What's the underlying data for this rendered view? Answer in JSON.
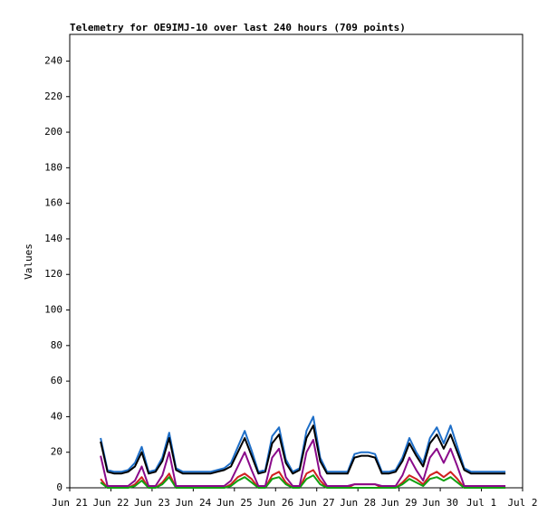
{
  "chart_data": {
    "type": "line",
    "title": "Telemetry for OE9IMJ-10 over last 240 hours (709 points)",
    "y_label": "Values",
    "x": [
      18,
      22,
      26,
      30,
      34,
      38,
      42,
      46,
      50,
      54,
      58,
      62,
      66,
      70,
      74,
      78,
      82,
      86,
      90,
      94,
      98,
      102,
      106,
      110,
      114,
      118,
      122,
      126,
      130,
      134,
      138,
      142,
      146,
      150,
      154,
      158,
      162,
      166,
      170,
      174,
      178,
      182,
      186,
      190,
      194,
      198,
      202,
      206,
      210,
      214,
      218,
      222,
      226,
      230,
      234,
      238,
      242,
      246,
      250,
      254
    ],
    "series": [
      {
        "color": "#1f6fc8",
        "values": [
          28,
          10,
          9,
          9,
          10,
          14,
          23,
          9,
          10,
          17,
          31,
          11,
          9,
          9,
          9,
          9,
          9,
          10,
          11,
          14,
          23,
          32,
          21,
          9,
          10,
          29,
          34,
          16,
          9,
          11,
          32,
          40,
          17,
          9,
          9,
          9,
          9,
          19,
          20,
          20,
          19,
          9,
          9,
          10,
          17,
          28,
          20,
          14,
          28,
          34,
          25,
          35,
          23,
          11,
          9,
          9,
          9,
          9,
          9,
          9
        ]
      },
      {
        "color": "#d02020",
        "values": [
          5,
          0,
          0,
          0,
          0,
          2,
          6,
          0,
          0,
          3,
          8,
          0,
          0,
          0,
          0,
          0,
          0,
          0,
          0,
          2,
          6,
          8,
          5,
          0,
          0,
          7,
          9,
          3,
          0,
          0,
          8,
          10,
          4,
          0,
          0,
          0,
          0,
          2,
          2,
          2,
          2,
          0,
          0,
          0,
          3,
          7,
          5,
          2,
          7,
          9,
          6,
          9,
          5,
          0,
          0,
          0,
          0,
          0,
          0,
          0
        ]
      },
      {
        "color": "#10a010",
        "values": [
          3,
          0,
          0,
          0,
          0,
          1,
          4,
          0,
          0,
          2,
          6,
          0,
          0,
          0,
          0,
          0,
          0,
          0,
          0,
          1,
          4,
          6,
          3,
          0,
          0,
          5,
          6,
          2,
          0,
          0,
          5,
          7,
          2,
          0,
          0,
          0,
          0,
          0,
          0,
          0,
          0,
          0,
          0,
          0,
          2,
          5,
          3,
          1,
          5,
          6,
          4,
          6,
          3,
          0,
          0,
          0,
          0,
          0,
          0,
          0
        ]
      },
      {
        "color": "#8a0a8a",
        "values": [
          18,
          1,
          1,
          1,
          1,
          4,
          12,
          1,
          1,
          7,
          20,
          1,
          1,
          1,
          1,
          1,
          1,
          1,
          1,
          4,
          12,
          20,
          10,
          1,
          1,
          17,
          22,
          6,
          1,
          1,
          20,
          27,
          7,
          1,
          1,
          1,
          1,
          2,
          2,
          2,
          2,
          1,
          1,
          1,
          7,
          17,
          10,
          4,
          17,
          22,
          14,
          22,
          12,
          1,
          1,
          1,
          1,
          1,
          1,
          1
        ]
      },
      {
        "color": "#000000",
        "values": [
          26,
          9,
          8,
          8,
          9,
          12,
          20,
          8,
          9,
          15,
          28,
          10,
          8,
          8,
          8,
          8,
          8,
          9,
          10,
          12,
          20,
          28,
          18,
          8,
          9,
          25,
          30,
          14,
          8,
          10,
          28,
          35,
          15,
          8,
          8,
          8,
          8,
          17,
          18,
          18,
          17,
          8,
          8,
          9,
          15,
          25,
          18,
          12,
          25,
          30,
          22,
          30,
          20,
          10,
          8,
          8,
          8,
          8,
          8,
          8
        ]
      }
    ],
    "xlim": [
      0,
      264
    ],
    "xticks": [
      {
        "value": 0,
        "label": "Jun 21"
      },
      {
        "value": 24,
        "label": "Jun 22"
      },
      {
        "value": 48,
        "label": "Jun 23"
      },
      {
        "value": 72,
        "label": "Jun 24"
      },
      {
        "value": 96,
        "label": "Jun 25"
      },
      {
        "value": 120,
        "label": "Jun 26"
      },
      {
        "value": 144,
        "label": "Jun 27"
      },
      {
        "value": 168,
        "label": "Jun 28"
      },
      {
        "value": 192,
        "label": "Jun 29"
      },
      {
        "value": 216,
        "label": "Jun 30"
      },
      {
        "value": 240,
        "label": "Jul 1"
      },
      {
        "value": 264,
        "label": "Jul 2"
      }
    ],
    "ylim": [
      0,
      255
    ],
    "yticks": [
      0,
      20,
      40,
      60,
      80,
      100,
      120,
      140,
      160,
      180,
      200,
      220,
      240
    ],
    "grid": false
  }
}
